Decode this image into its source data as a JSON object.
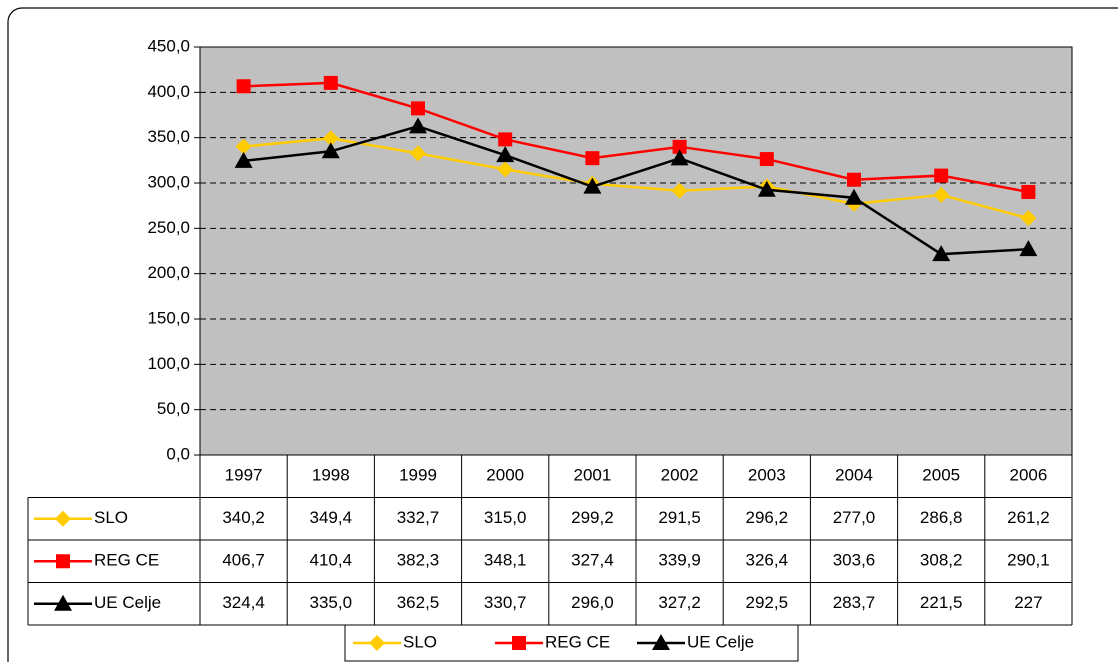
{
  "chart_data": {
    "type": "line",
    "categories": [
      "1997",
      "1998",
      "1999",
      "2000",
      "2001",
      "2002",
      "2003",
      "2004",
      "2005",
      "2006"
    ],
    "series": [
      {
        "name": "SLO",
        "color": "#ffcc00",
        "marker": "diamond",
        "values": [
          340.2,
          349.4,
          332.7,
          315.0,
          299.2,
          291.5,
          296.2,
          277.0,
          286.8,
          261.2
        ],
        "value_labels": [
          "340,2",
          "349,4",
          "332,7",
          "315,0",
          "299,2",
          "291,5",
          "296,2",
          "277,0",
          "286,8",
          "261,2"
        ]
      },
      {
        "name": "REG CE",
        "color": "#ff0000",
        "marker": "square",
        "values": [
          406.7,
          410.4,
          382.3,
          348.1,
          327.4,
          339.9,
          326.4,
          303.6,
          308.2,
          290.1
        ],
        "value_labels": [
          "406,7",
          "410,4",
          "382,3",
          "348,1",
          "327,4",
          "339,9",
          "326,4",
          "303,6",
          "308,2",
          "290,1"
        ]
      },
      {
        "name": "UE Celje",
        "color": "#000000",
        "marker": "triangle",
        "values": [
          324.4,
          335.0,
          362.5,
          330.7,
          296.0,
          327.2,
          292.5,
          283.7,
          221.5,
          227
        ],
        "value_labels": [
          "324,4",
          "335,0",
          "362,5",
          "330,7",
          "296,0",
          "327,2",
          "292,5",
          "283,7",
          "221,5",
          "227"
        ]
      }
    ],
    "ylim": [
      0,
      450
    ],
    "yticks": [
      {
        "value": 0,
        "label": "0,0"
      },
      {
        "value": 50,
        "label": "50,0"
      },
      {
        "value": 100,
        "label": "100,0"
      },
      {
        "value": 150,
        "label": "150,0"
      },
      {
        "value": 200,
        "label": "200,0"
      },
      {
        "value": 250,
        "label": "250,0"
      },
      {
        "value": 300,
        "label": "300,0"
      },
      {
        "value": 350,
        "label": "350,0"
      },
      {
        "value": 400,
        "label": "400,0"
      },
      {
        "value": 450,
        "label": "450,0"
      }
    ],
    "grid": true,
    "plot_background": "#c0c0c0",
    "legend": "bottom",
    "data_table": true
  }
}
